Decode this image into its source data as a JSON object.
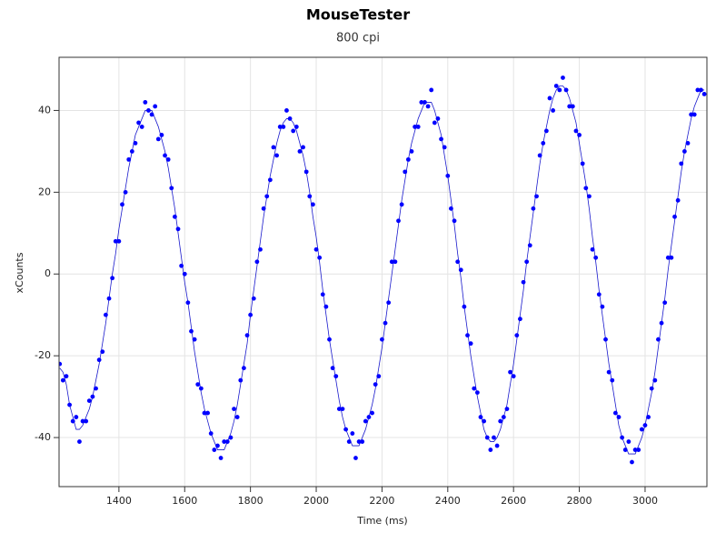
{
  "chart_data": {
    "type": "scatter",
    "title": "MouseTester",
    "subtitle": "800 cpi",
    "x_label": "Time (ms)",
    "y_label": "xCounts",
    "xlim": [
      1218,
      3188
    ],
    "ylim": [
      -52,
      53
    ],
    "xticks": [
      1400,
      1600,
      1800,
      2000,
      2200,
      2400,
      2600,
      2800,
      3000
    ],
    "yticks": [
      -40,
      -20,
      0,
      20,
      40
    ],
    "grid": true,
    "x": [
      1220,
      1230,
      1240,
      1250,
      1260,
      1270,
      1280,
      1290,
      1300,
      1310,
      1320,
      1330,
      1340,
      1350,
      1360,
      1370,
      1380,
      1390,
      1400,
      1410,
      1420,
      1430,
      1440,
      1450,
      1460,
      1470,
      1480,
      1490,
      1500,
      1510,
      1520,
      1530,
      1540,
      1550,
      1560,
      1570,
      1580,
      1590,
      1600,
      1610,
      1620,
      1630,
      1640,
      1650,
      1660,
      1670,
      1680,
      1690,
      1700,
      1710,
      1720,
      1730,
      1740,
      1750,
      1760,
      1770,
      1780,
      1790,
      1800,
      1810,
      1820,
      1830,
      1840,
      1850,
      1860,
      1870,
      1880,
      1890,
      1900,
      1910,
      1920,
      1930,
      1940,
      1950,
      1960,
      1970,
      1980,
      1990,
      2000,
      2010,
      2020,
      2030,
      2040,
      2050,
      2060,
      2070,
      2080,
      2090,
      2100,
      2110,
      2120,
      2130,
      2140,
      2150,
      2160,
      2170,
      2180,
      2190,
      2200,
      2210,
      2220,
      2230,
      2240,
      2250,
      2260,
      2270,
      2280,
      2290,
      2300,
      2310,
      2320,
      2330,
      2340,
      2350,
      2360,
      2370,
      2380,
      2390,
      2400,
      2410,
      2420,
      2430,
      2440,
      2450,
      2460,
      2470,
      2480,
      2490,
      2500,
      2510,
      2520,
      2530,
      2540,
      2550,
      2560,
      2570,
      2580,
      2590,
      2600,
      2610,
      2620,
      2630,
      2640,
      2650,
      2660,
      2670,
      2680,
      2690,
      2700,
      2710,
      2720,
      2730,
      2740,
      2750,
      2760,
      2770,
      2780,
      2790,
      2800,
      2810,
      2820,
      2830,
      2840,
      2850,
      2860,
      2870,
      2880,
      2890,
      2900,
      2910,
      2920,
      2930,
      2940,
      2950,
      2960,
      2970,
      2980,
      2990,
      3000,
      3010,
      3020,
      3030,
      3040,
      3050,
      3060,
      3070,
      3080,
      3090,
      3100,
      3110,
      3120,
      3130,
      3140,
      3150,
      3160,
      3170,
      3180
    ],
    "series": [
      {
        "style": "line",
        "color": "#1a1acc",
        "values": [
          -23,
          -24,
          -27,
          -32,
          -35,
          -38,
          -38,
          -37,
          -35,
          -33,
          -30,
          -26,
          -22,
          -17,
          -12,
          -6,
          0,
          5,
          11,
          16,
          21,
          26,
          30,
          34,
          36,
          38,
          40,
          40,
          40,
          38,
          36,
          33,
          30,
          26,
          21,
          16,
          10,
          4,
          -2,
          -7,
          -13,
          -19,
          -24,
          -29,
          -33,
          -36,
          -39,
          -41,
          -43,
          -43,
          -43,
          -41,
          -39,
          -36,
          -32,
          -27,
          -22,
          -17,
          -10,
          -4,
          2,
          8,
          14,
          19,
          24,
          28,
          32,
          35,
          37,
          38,
          38,
          37,
          35,
          32,
          29,
          25,
          20,
          14,
          9,
          3,
          -4,
          -10,
          -16,
          -21,
          -26,
          -31,
          -35,
          -38,
          -40,
          -42,
          -42,
          -42,
          -40,
          -38,
          -35,
          -32,
          -28,
          -23,
          -18,
          -12,
          -6,
          0,
          6,
          12,
          18,
          23,
          28,
          32,
          35,
          38,
          40,
          42,
          42,
          42,
          40,
          37,
          34,
          29,
          24,
          18,
          12,
          5,
          -1,
          -8,
          -14,
          -20,
          -25,
          -30,
          -34,
          -38,
          -40,
          -41,
          -41,
          -40,
          -38,
          -35,
          -32,
          -27,
          -22,
          -16,
          -10,
          -4,
          3,
          9,
          15,
          21,
          27,
          32,
          36,
          40,
          43,
          45,
          46,
          46,
          45,
          43,
          40,
          37,
          32,
          27,
          22,
          16,
          9,
          3,
          -4,
          -10,
          -16,
          -22,
          -27,
          -32,
          -37,
          -40,
          -42,
          -44,
          -44,
          -44,
          -42,
          -40,
          -37,
          -33,
          -29,
          -24,
          -18,
          -12,
          -6,
          1,
          7,
          13,
          19,
          25,
          30,
          34,
          38,
          41,
          43,
          45,
          45
        ]
      },
      {
        "style": "markers",
        "color": "#0000ff",
        "values": [
          -22,
          -26,
          -25,
          -32,
          -36,
          -35,
          -41,
          -36,
          -36,
          -31,
          -30,
          -28,
          -21,
          -19,
          -10,
          -6,
          -1,
          8,
          8,
          17,
          20,
          28,
          30,
          32,
          37,
          36,
          42,
          40,
          39,
          41,
          33,
          34,
          29,
          28,
          21,
          14,
          11,
          2,
          0,
          -7,
          -14,
          -16,
          -27,
          -28,
          -34,
          -34,
          -39,
          -43,
          -42,
          -45,
          -41,
          -41,
          -40,
          -33,
          -35,
          -26,
          -23,
          -15,
          -10,
          -6,
          3,
          6,
          16,
          19,
          23,
          31,
          29,
          36,
          36,
          40,
          38,
          35,
          36,
          30,
          31,
          25,
          19,
          17,
          6,
          4,
          -5,
          -8,
          -16,
          -23,
          -25,
          -33,
          -33,
          -38,
          -41,
          -39,
          -45,
          -41,
          -41,
          -36,
          -35,
          -34,
          -27,
          -25,
          -16,
          -12,
          -7,
          3,
          3,
          13,
          17,
          25,
          28,
          30,
          36,
          36,
          42,
          42,
          41,
          45,
          37,
          38,
          33,
          31,
          24,
          16,
          13,
          3,
          1,
          -8,
          -15,
          -17,
          -28,
          -29,
          -35,
          -36,
          -40,
          -43,
          -40,
          -42,
          -36,
          -35,
          -33,
          -24,
          -25,
          -15,
          -11,
          -2,
          3,
          7,
          16,
          19,
          29,
          32,
          35,
          43,
          40,
          46,
          45,
          48,
          45,
          41,
          41,
          35,
          34,
          27,
          21,
          19,
          6,
          4,
          -5,
          -8,
          -16,
          -24,
          -26,
          -34,
          -35,
          -40,
          -43,
          -41,
          -46,
          -43,
          -43,
          -38,
          -37,
          -35,
          -28,
          -26,
          -16,
          -12,
          -7,
          4,
          4,
          14,
          18,
          27,
          30,
          32,
          39,
          39,
          45,
          45,
          44
        ]
      }
    ]
  }
}
